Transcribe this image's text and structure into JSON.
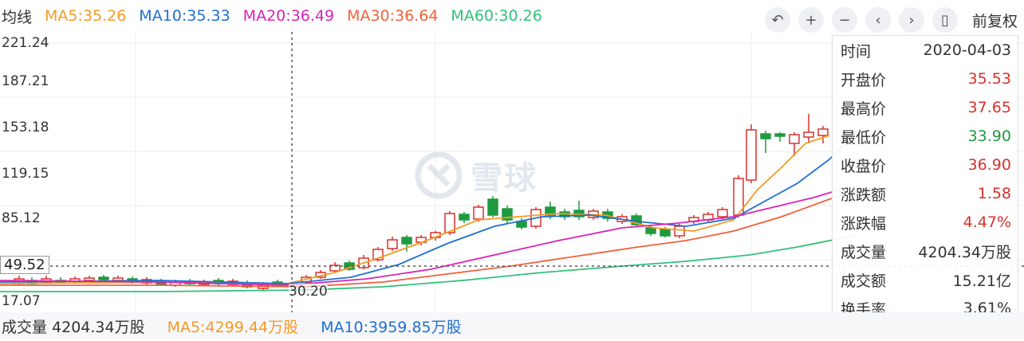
{
  "legend": {
    "label": "均线",
    "ma5": "MA5:35.26",
    "ma10": "MA10:35.33",
    "ma20": "MA20:36.49",
    "ma30": "MA30:36.64",
    "ma60": "MA60:30.26"
  },
  "toolbar": {
    "undo_icon": "↶",
    "zoom_in_icon": "+",
    "zoom_out_icon": "−",
    "prev_icon": "‹",
    "next_icon": "›",
    "candle_icon": "▯",
    "adjust_label": "前复权"
  },
  "y_axis": [
    "221.24",
    "187.21",
    "153.18",
    "119.15",
    "85.12",
    "17.07"
  ],
  "crosshair": {
    "x_value": "30.20",
    "y_value": "49.52"
  },
  "watermark": "雪球",
  "tooltip": [
    {
      "label": "时间",
      "value": "2020-04-03",
      "tone": ""
    },
    {
      "label": "开盘价",
      "value": "35.53",
      "tone": "up"
    },
    {
      "label": "最高价",
      "value": "37.65",
      "tone": "up"
    },
    {
      "label": "最低价",
      "value": "33.90",
      "tone": "down"
    },
    {
      "label": "收盘价",
      "value": "36.90",
      "tone": "up"
    },
    {
      "label": "涨跌额",
      "value": "1.58",
      "tone": "up"
    },
    {
      "label": "涨跌幅",
      "value": "4.47%",
      "tone": "up"
    },
    {
      "label": "成交量",
      "value": "4204.34万股",
      "tone": ""
    },
    {
      "label": "成交额",
      "value": "15.21亿",
      "tone": ""
    },
    {
      "label": "换手率",
      "value": "3.61%",
      "tone": ""
    }
  ],
  "volume_bar": {
    "label": "成交量 4204.34万股",
    "ma5": "MA5:4299.44万股",
    "ma10": "MA10:3959.85万股"
  },
  "colors": {
    "ma5": "#f59a23",
    "ma10": "#1f6fd1",
    "ma20": "#d923b5",
    "ma30": "#f2603a",
    "ma60": "#31c07a",
    "up": "#d9302b",
    "down": "#1e9b3f"
  }
}
